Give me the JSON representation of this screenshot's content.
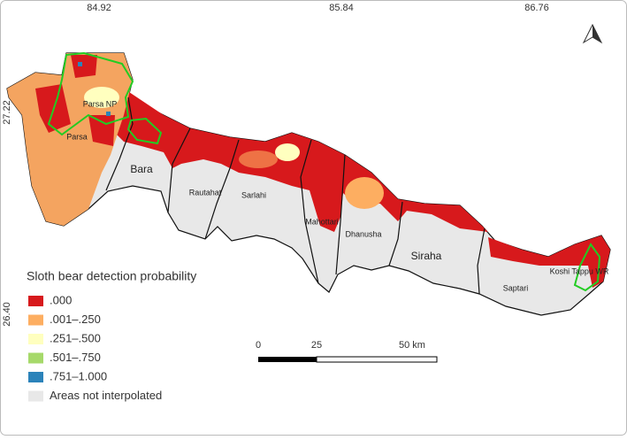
{
  "map": {
    "top_coordinates": [
      "84.92",
      "85.84",
      "86.76"
    ],
    "left_coordinates": [
      "27.22",
      "26.40"
    ],
    "districts": [
      "Parsa NP",
      "Parsa",
      "Bara",
      "Rautahat",
      "Sarlahi",
      "Mahottari",
      "Dhanusha",
      "Siraha",
      "Saptari",
      "Koshi Tappu WR"
    ],
    "legend": {
      "title": "Sloth bear detection probability",
      "items": [
        {
          "label": ".000",
          "color": "#d7191c"
        },
        {
          "label": ".001–.250",
          "color": "#fdae61"
        },
        {
          "label": ".251–.500",
          "color": "#ffffbf"
        },
        {
          "label": ".501–.750",
          "color": "#a6d96a"
        },
        {
          "label": ".751–1.000",
          "color": "#2b83ba"
        },
        {
          "label": "Areas not interpolated",
          "color": "#e8e8e8"
        }
      ]
    },
    "scale_bar": [
      "0",
      "25",
      "50 km"
    ]
  }
}
